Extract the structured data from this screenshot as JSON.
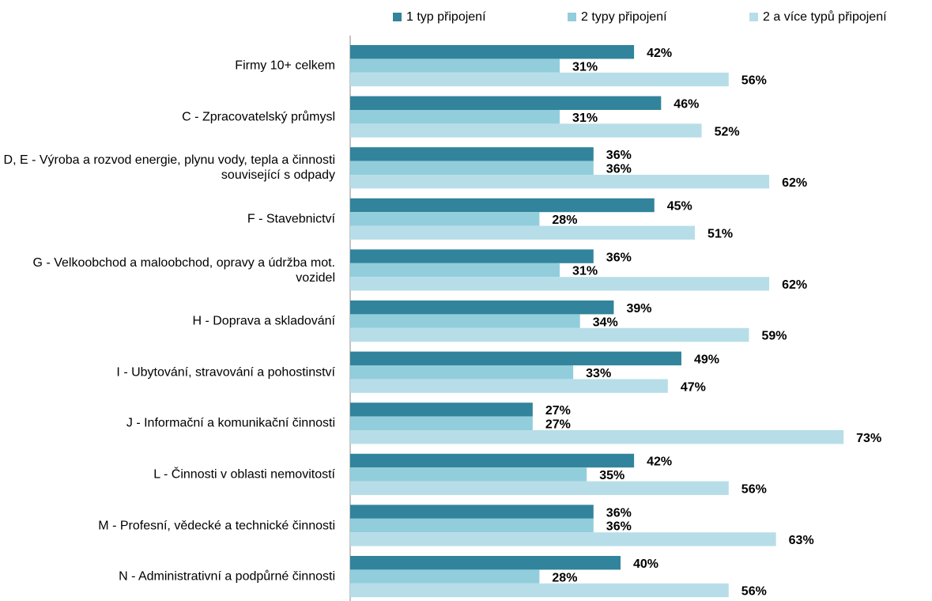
{
  "chart_data": {
    "type": "bar",
    "orientation": "horizontal",
    "categories": [
      "Firmy 10+ celkem",
      "C - Zpracovatelský průmysl",
      "D, E - Výroba a rozvod energie, plynu vody, tepla a činnosti související s odpady",
      "F - Stavebnictví",
      "G - Velkoobchod a maloobchod, opravy a údržba mot. vozidel",
      "H - Doprava a skladování",
      "I - Ubytování, stravování a pohostinství",
      "J - Informační a komunikační činnosti",
      "L - Činnosti v oblasti nemovitostí",
      "M - Profesní, vědecké a technické činnosti",
      "N - Administrativní a podpůrné činnosti"
    ],
    "series": [
      {
        "name": "1 typ připojení",
        "color": "#31849b",
        "values": [
          42,
          46,
          36,
          45,
          36,
          39,
          49,
          27,
          42,
          36,
          40
        ],
        "value_labels": [
          "42%",
          "46%",
          "36%",
          "45%",
          "36%",
          "39%",
          "49%",
          "27%",
          "42%",
          "36%",
          "40%"
        ]
      },
      {
        "name": "2 typy připojení",
        "color": "#92cddc",
        "values": [
          31,
          31,
          36,
          28,
          31,
          34,
          33,
          27,
          35,
          36,
          28
        ],
        "value_labels": [
          "31%",
          "31%",
          "36%",
          "28%",
          "31%",
          "34%",
          "33%",
          "27%",
          "35%",
          "36%",
          "28%"
        ]
      },
      {
        "name": "2 a více typů připojení",
        "color": "#b7dee8",
        "values": [
          56,
          52,
          62,
          51,
          62,
          59,
          47,
          73,
          56,
          63,
          56
        ],
        "value_labels": [
          "56%",
          "52%",
          "62%",
          "51%",
          "62%",
          "59%",
          "47%",
          "73%",
          "56%",
          "63%",
          "56%"
        ]
      }
    ],
    "legend": "top"
  }
}
